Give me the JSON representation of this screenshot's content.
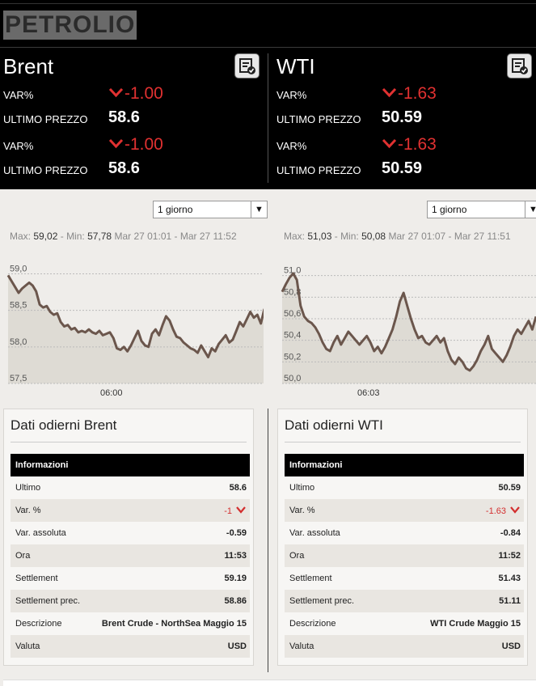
{
  "header": {
    "title": "PETROLIO"
  },
  "colors": {
    "negative": "#e03131",
    "line": "#6b564c",
    "area": "#dedbd4"
  },
  "quotes": [
    {
      "name": "Brent",
      "rows": [
        {
          "label": "VAR%",
          "value": "-1.00",
          "type": "var"
        },
        {
          "label": "ULTIMO PREZZO",
          "value": "58.6",
          "type": "price"
        },
        {
          "label": "VAR%",
          "value": "-1.00",
          "type": "var"
        },
        {
          "label": "ULTIMO PREZZO",
          "value": "58.6",
          "type": "price"
        }
      ]
    },
    {
      "name": "WTI",
      "rows": [
        {
          "label": "VAR%",
          "value": "-1.63",
          "type": "var"
        },
        {
          "label": "ULTIMO PREZZO",
          "value": "50.59",
          "type": "price"
        },
        {
          "label": "VAR%",
          "value": "-1.63",
          "type": "var"
        },
        {
          "label": "ULTIMO PREZZO",
          "value": "50.59",
          "type": "price"
        }
      ]
    }
  ],
  "charts": [
    {
      "period": "1 giorno",
      "max_label": "Max:",
      "max": "59,02",
      "min_label": "Min:",
      "min": "57,78",
      "range": "Mar 27 01:01 - Mar 27 11:52"
    },
    {
      "period": "1 giorno",
      "max_label": "Max:",
      "max": "51,03",
      "min_label": "Min:",
      "min": "50,08",
      "range": "Mar 27 01:07 - Mar 27 11:51"
    }
  ],
  "chart_data": [
    {
      "type": "area",
      "x_ticks": [
        "06:00"
      ],
      "y_ticks": [
        "59,0",
        "58,5",
        "58,0",
        "57,5"
      ],
      "ylim": [
        57.5,
        59.05
      ],
      "values": [
        58.98,
        58.9,
        58.82,
        58.74,
        58.8,
        58.84,
        58.88,
        58.84,
        58.76,
        58.58,
        58.54,
        58.56,
        58.48,
        58.44,
        58.46,
        58.34,
        58.28,
        58.3,
        58.24,
        58.26,
        58.2,
        58.22,
        58.2,
        58.24,
        58.2,
        58.18,
        58.22,
        58.16,
        58.18,
        58.2,
        58.12,
        57.98,
        57.96,
        58.0,
        57.94,
        58.02,
        58.12,
        58.22,
        58.08,
        58.02,
        58.0,
        58.18,
        58.24,
        58.16,
        58.3,
        58.42,
        58.36,
        58.24,
        58.14,
        58.12,
        58.06,
        58.02,
        57.98,
        57.96,
        57.92,
        58.02,
        57.94,
        57.86,
        57.98,
        57.94,
        58.04,
        58.1,
        58.16,
        58.06,
        58.1,
        58.22,
        58.34,
        58.28,
        58.38,
        58.48,
        58.4,
        58.44,
        58.32,
        58.52
      ]
    },
    {
      "type": "area",
      "x_ticks": [
        "06:03"
      ],
      "y_ticks": [
        "51,0",
        "50,8",
        "50,6",
        "50,4",
        "50,2",
        "50,0"
      ],
      "ylim": [
        50.0,
        51.05
      ],
      "values": [
        50.85,
        50.92,
        50.98,
        51.02,
        50.96,
        50.72,
        50.62,
        50.58,
        50.56,
        50.52,
        50.46,
        50.38,
        50.32,
        50.3,
        50.38,
        50.44,
        50.36,
        50.42,
        50.48,
        50.44,
        50.4,
        50.36,
        50.4,
        50.44,
        50.38,
        50.3,
        50.34,
        50.28,
        50.34,
        50.42,
        50.5,
        50.62,
        50.76,
        50.84,
        50.72,
        50.6,
        50.5,
        50.42,
        50.44,
        50.38,
        50.36,
        50.4,
        50.44,
        50.38,
        50.42,
        50.3,
        50.22,
        50.18,
        50.24,
        50.2,
        50.14,
        50.12,
        50.16,
        50.22,
        50.3,
        50.36,
        50.44,
        50.32,
        50.28,
        50.24,
        50.2,
        50.26,
        50.34,
        50.44,
        50.5,
        50.46,
        50.52,
        50.58,
        50.5,
        50.62
      ]
    }
  ],
  "tables": [
    {
      "title": "Dati odierni Brent",
      "header": "Informazioni",
      "rows": [
        {
          "k": "Ultimo",
          "v": "58.6"
        },
        {
          "k": "Var. %",
          "v": "-1",
          "red": true
        },
        {
          "k": "Var. assoluta",
          "v": "-0.59"
        },
        {
          "k": "Ora",
          "v": "11:53"
        },
        {
          "k": "Settlement",
          "v": "59.19"
        },
        {
          "k": "Settlement prec.",
          "v": "58.86"
        },
        {
          "k": "Descrizione",
          "v": "Brent Crude - NorthSea Maggio 15"
        },
        {
          "k": "Valuta",
          "v": "USD"
        }
      ]
    },
    {
      "title": "Dati odierni WTI",
      "header": "Informazioni",
      "rows": [
        {
          "k": "Ultimo",
          "v": "50.59"
        },
        {
          "k": "Var. %",
          "v": "-1.63",
          "red": true
        },
        {
          "k": "Var. assoluta",
          "v": "-0.84"
        },
        {
          "k": "Ora",
          "v": "11:52"
        },
        {
          "k": "Settlement",
          "v": "51.43"
        },
        {
          "k": "Settlement prec.",
          "v": "51.11"
        },
        {
          "k": "Descrizione",
          "v": "WTI Crude Maggio 15"
        },
        {
          "k": "Valuta",
          "v": "USD"
        }
      ]
    }
  ]
}
